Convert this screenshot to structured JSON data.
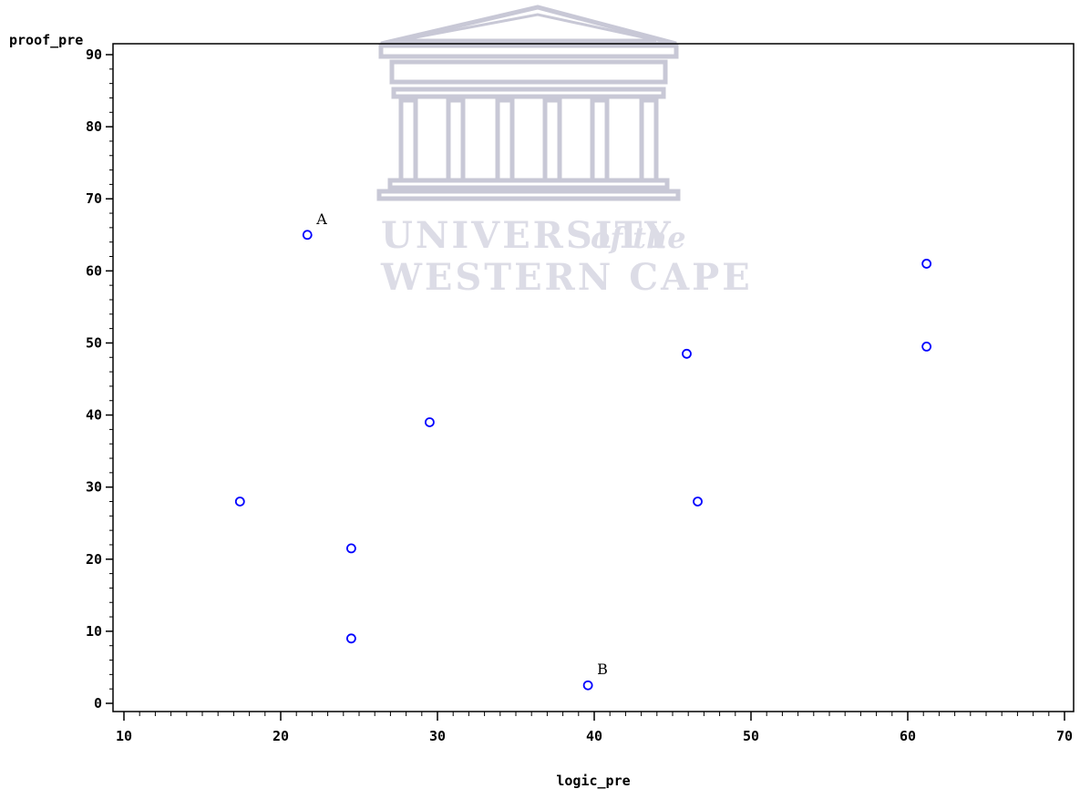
{
  "watermark": {
    "line1_main": "UNIVERSITY",
    "line1_italic": "of the",
    "line2": "WESTERN CAPE",
    "color": "#dcdce6"
  },
  "chart_data": {
    "type": "scatter",
    "title": "",
    "xlabel": "logic_pre",
    "ylabel": "proof_pre",
    "xlim": [
      10,
      70
    ],
    "ylim": [
      0,
      90
    ],
    "x_ticks": [
      10,
      20,
      30,
      40,
      50,
      60,
      70
    ],
    "y_ticks": [
      0,
      10,
      20,
      30,
      40,
      50,
      60,
      70,
      80,
      90
    ],
    "grid": false,
    "marker": "circle",
    "color": "#0000ff",
    "points": [
      {
        "x": 17.4,
        "y": 28
      },
      {
        "x": 21.7,
        "y": 65,
        "label": "A"
      },
      {
        "x": 24.5,
        "y": 21.5
      },
      {
        "x": 24.5,
        "y": 9
      },
      {
        "x": 29.5,
        "y": 39
      },
      {
        "x": 39.6,
        "y": 2.5,
        "label": "B"
      },
      {
        "x": 45.9,
        "y": 48.5
      },
      {
        "x": 46.6,
        "y": 28
      },
      {
        "x": 61.2,
        "y": 61
      },
      {
        "x": 61.2,
        "y": 49.5
      }
    ]
  }
}
